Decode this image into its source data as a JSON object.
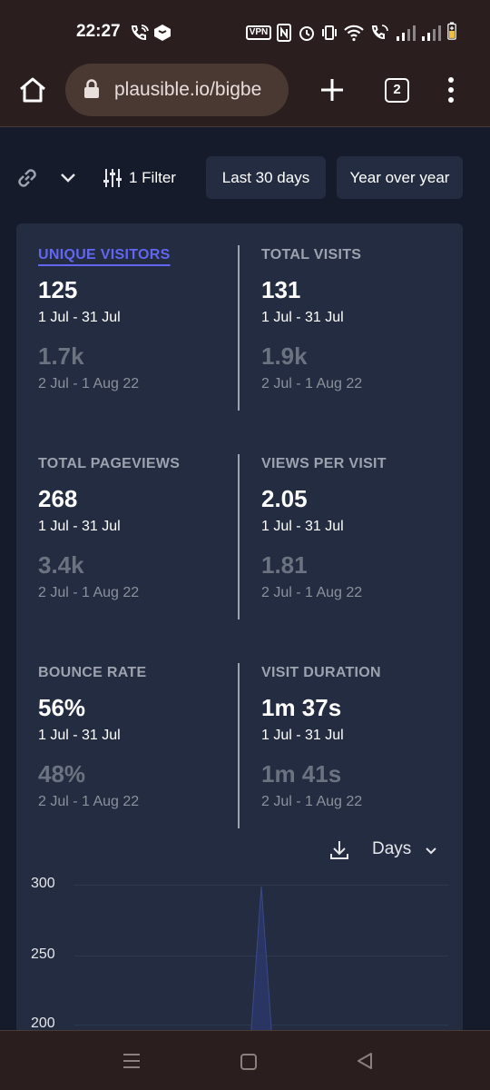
{
  "status_bar": {
    "time": "22:27",
    "vpn_label": "VPN",
    "icons": [
      "wifi-call-icon",
      "app-notification-icon",
      "vpn-icon",
      "nfc-icon",
      "alarm-icon",
      "vibrate-icon",
      "wifi-icon",
      "call-signal-icon",
      "signal-icon",
      "signal-icon",
      "battery-icon"
    ]
  },
  "browser": {
    "url": "plausible.io/bigbe",
    "tab_count": "2"
  },
  "controls": {
    "filter_label": "1 Filter",
    "period_label": "Last 30 days",
    "comparison_label": "Year over year"
  },
  "metrics": [
    {
      "label": "UNIQUE VISITORS",
      "value": "125",
      "range": "1 Jul - 31 Jul",
      "compare_value": "1.7k",
      "compare_range": "2 Jul - 1 Aug 22"
    },
    {
      "label": "TOTAL VISITS",
      "value": "131",
      "range": "1 Jul - 31 Jul",
      "compare_value": "1.9k",
      "compare_range": "2 Jul - 1 Aug 22"
    },
    {
      "label": "TOTAL PAGEVIEWS",
      "value": "268",
      "range": "1 Jul - 31 Jul",
      "compare_value": "3.4k",
      "compare_range": "2 Jul - 1 Aug 22"
    },
    {
      "label": "VIEWS PER VISIT",
      "value": "2.05",
      "range": "1 Jul - 31 Jul",
      "compare_value": "1.81",
      "compare_range": "2 Jul - 1 Aug 22"
    },
    {
      "label": "BOUNCE RATE",
      "value": "56%",
      "range": "1 Jul - 31 Jul",
      "compare_value": "48%",
      "compare_range": "2 Jul - 1 Aug 22"
    },
    {
      "label": "VISIT DURATION",
      "value": "1m 37s",
      "range": "1 Jul - 31 Jul",
      "compare_value": "1m 41s",
      "compare_range": "2 Jul - 1 Aug 22"
    }
  ],
  "chart": {
    "interval_label": "Days",
    "y_ticks": [
      "300",
      "250",
      "200"
    ]
  },
  "colors": {
    "accent": "#6366f1",
    "card_bg": "#232c40",
    "page_bg": "#151b2a",
    "browser_chrome": "#2a1f1e"
  }
}
